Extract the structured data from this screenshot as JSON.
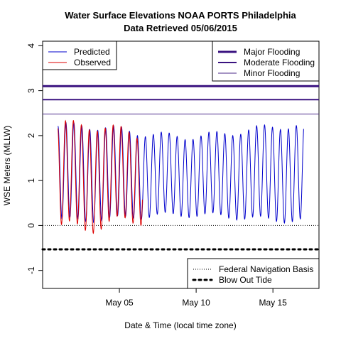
{
  "chart_data": {
    "type": "line",
    "title": "Water Surface Elevations NOAA PORTS Philadelphia",
    "subtitle": "Data Retrieved 05/06/2015",
    "xlabel": "Date & Time (local time zone)",
    "ylabel": "WSE Meters (MLLW)",
    "xlim": [
      "2015-04-30",
      "2015-05-18"
    ],
    "ylim": [
      -1.4,
      4.1
    ],
    "x_ticks": [
      {
        "date": "2015-05-05",
        "label": "May 05"
      },
      {
        "date": "2015-05-10",
        "label": "May 10"
      },
      {
        "date": "2015-05-15",
        "label": "May 15"
      }
    ],
    "y_ticks": [
      -1,
      0,
      1,
      2,
      3,
      4
    ],
    "y_tick_labels": [
      "-1",
      "0",
      "1",
      "2",
      "3",
      "4"
    ],
    "grid": false,
    "tide_period_hours": 12.42,
    "series": [
      {
        "name": "Predicted",
        "color": "#0000cc",
        "start": "2015-05-01 00:00",
        "end": "2015-05-17 00:00",
        "high_water_range": [
          1.9,
          2.3
        ],
        "low_water_range": [
          0.05,
          0.3
        ]
      },
      {
        "name": "Observed",
        "color": "#dd0000",
        "start": "2015-05-01 00:00",
        "end": "2015-05-06 12:00",
        "high_water_range": [
          1.8,
          2.35
        ],
        "low_water_range": [
          -0.2,
          0.4
        ]
      }
    ],
    "reference_lines": [
      {
        "name": "Major Flooding",
        "value": 3.1,
        "color": "#3a1380",
        "style": "solid",
        "weight": "heavy"
      },
      {
        "name": "Moderate Flooding",
        "value": 2.8,
        "color": "#3a1380",
        "style": "solid",
        "weight": "medium"
      },
      {
        "name": "Minor Flooding",
        "value": 2.48,
        "color": "#4b2a8a",
        "style": "solid",
        "weight": "thin"
      },
      {
        "name": "Federal Navigation Basis",
        "value": 0,
        "color": "#000000",
        "style": "dotted",
        "weight": "thin"
      },
      {
        "name": "Blow Out Tide",
        "value": -0.53,
        "color": "#000000",
        "style": "dotted",
        "weight": "heavy"
      }
    ],
    "legends": [
      {
        "placement": "top-left",
        "entries": [
          "Predicted",
          "Observed"
        ]
      },
      {
        "placement": "top-right",
        "entries": [
          "Major Flooding",
          "Moderate Flooding",
          "Minor Flooding"
        ]
      },
      {
        "placement": "bottom-right",
        "entries": [
          "Federal Navigation Basis",
          "Blow Out Tide"
        ]
      }
    ]
  }
}
